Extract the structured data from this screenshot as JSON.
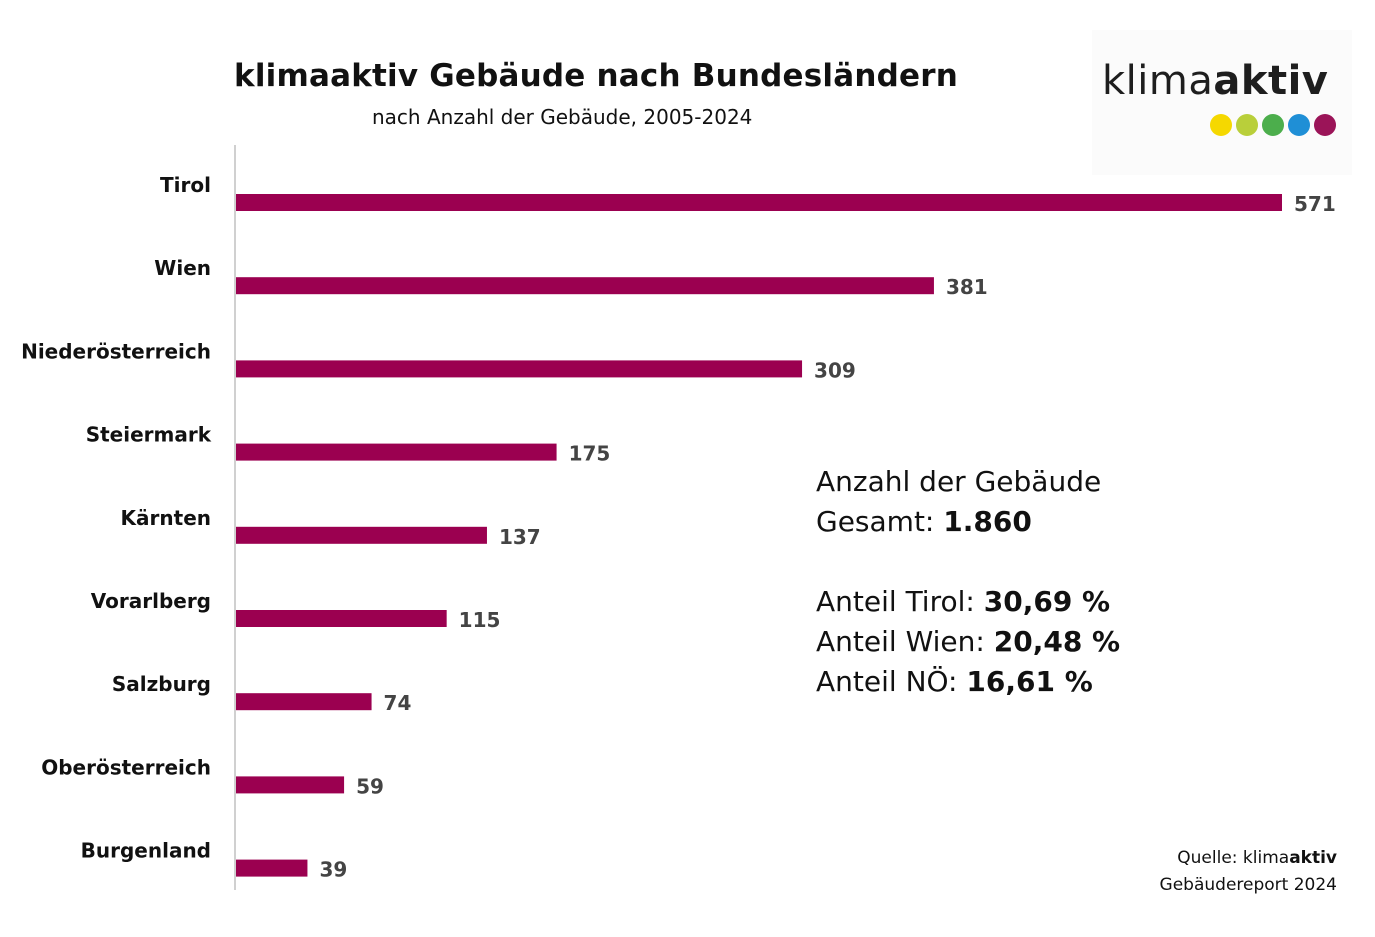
{
  "header": {
    "title": "klimaaktiv Gebäude nach Bundesländern",
    "subtitle": "nach Anzahl der Gebäude, 2005-2024"
  },
  "logo": {
    "text_light": "klima",
    "text_bold": "aktiv",
    "dot_colors": [
      "#f5d800",
      "#b9cf3a",
      "#4cae4c",
      "#1f8fd6",
      "#9b1458"
    ]
  },
  "stats": {
    "heading": "Anzahl der Gebäude",
    "total_label": "Gesamt: ",
    "total_value": "1.860",
    "share_tirol_label": "Anteil Tirol: ",
    "share_tirol_value": "30,69 %",
    "share_wien_label": "Anteil Wien: ",
    "share_wien_value": "20,48 %",
    "share_noe_label": "Anteil NÖ: ",
    "share_noe_value": "16,61 %"
  },
  "source": {
    "prefix": "Quelle: klima",
    "bold": "aktiv",
    "line2": "Gebäudereport 2024"
  },
  "chart_data": {
    "type": "bar",
    "orientation": "horizontal",
    "title": "klimaaktiv Gebäude nach Bundesländern",
    "subtitle": "nach Anzahl der Gebäude, 2005-2024",
    "categories": [
      "Tirol",
      "Wien",
      "Niederösterreich",
      "Steiermark",
      "Kärnten",
      "Vorarlberg",
      "Salzburg",
      "Oberösterreich",
      "Burgenland"
    ],
    "values": [
      571,
      381,
      309,
      175,
      137,
      115,
      74,
      59,
      39
    ],
    "xlim": [
      0,
      571
    ],
    "bar_color": "#9b0050",
    "grid": false,
    "legend": "none"
  }
}
